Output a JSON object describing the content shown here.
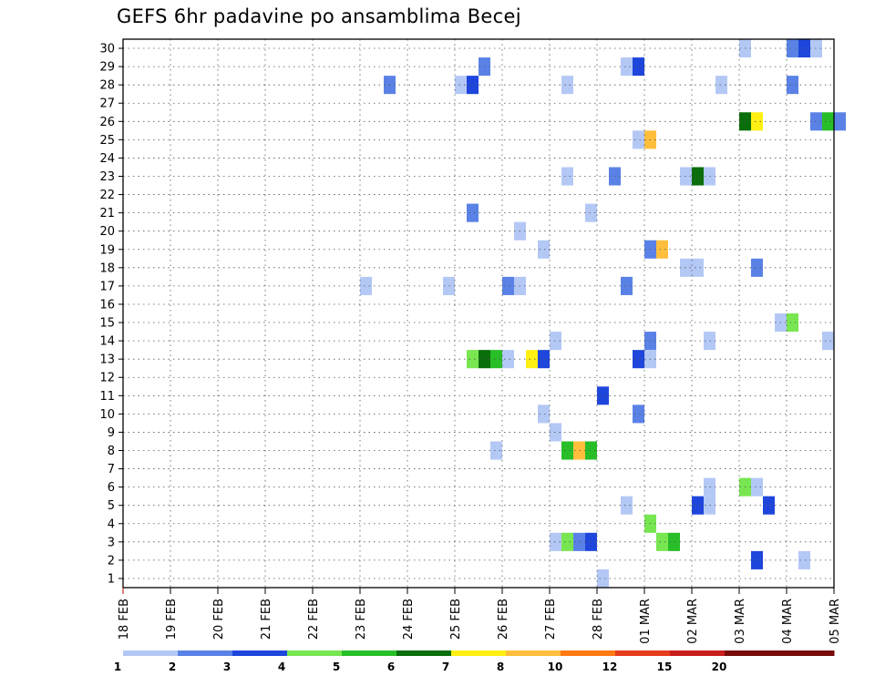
{
  "title": "GEFS 6hr padavine po ansamblima Becej",
  "chart_data": {
    "type": "heatmap",
    "title": "GEFS 6hr padavine po ansamblima Becej",
    "xlabel": "",
    "ylabel": "",
    "x_tick_labels": [
      "18 FEB",
      "19 FEB",
      "20 FEB",
      "21 FEB",
      "22 FEB",
      "23 FEB",
      "24 FEB",
      "25 FEB",
      "26 FEB",
      "27 FEB",
      "28 FEB",
      "01 MAR",
      "02 MAR",
      "03 MAR",
      "04 MAR",
      "05 MAR"
    ],
    "y_tick_labels": [
      "1",
      "2",
      "3",
      "4",
      "5",
      "6",
      "7",
      "8",
      "9",
      "10",
      "11",
      "12",
      "13",
      "14",
      "15",
      "16",
      "17",
      "18",
      "19",
      "20",
      "21",
      "22",
      "23",
      "24",
      "25",
      "26",
      "27",
      "28",
      "29",
      "30"
    ],
    "ylim": [
      0.5,
      30.5
    ],
    "xlim_days": [
      0,
      15
    ],
    "steps_per_day": 4,
    "grid": true,
    "colorbar": {
      "labels": [
        "1",
        "2",
        "3",
        "4",
        "5",
        "6",
        "7",
        "8",
        "10",
        "12",
        "15",
        "20"
      ],
      "colors": [
        "#b4c8f5",
        "#5a82e6",
        "#1e46dc",
        "#78e650",
        "#28be28",
        "#0a6e0a",
        "#fff014",
        "#ffbe3c",
        "#ff7814",
        "#e63c1e",
        "#c81e1e",
        "#780a0a"
      ]
    },
    "cells": [
      {
        "member": 30,
        "step": 52,
        "level": 1
      },
      {
        "member": 30,
        "step": 56,
        "level": 2
      },
      {
        "member": 30,
        "step": 57,
        "level": 3
      },
      {
        "member": 30,
        "step": 58,
        "level": 1
      },
      {
        "member": 29,
        "step": 30,
        "level": 2
      },
      {
        "member": 29,
        "step": 42,
        "level": 1
      },
      {
        "member": 29,
        "step": 43,
        "level": 3
      },
      {
        "member": 28,
        "step": 22,
        "level": 2
      },
      {
        "member": 28,
        "step": 28,
        "level": 1
      },
      {
        "member": 28,
        "step": 29,
        "level": 3
      },
      {
        "member": 28,
        "step": 37,
        "level": 1
      },
      {
        "member": 28,
        "step": 50,
        "level": 1
      },
      {
        "member": 28,
        "step": 56,
        "level": 2
      },
      {
        "member": 26,
        "step": 52,
        "level": 6
      },
      {
        "member": 26,
        "step": 53,
        "level": 7
      },
      {
        "member": 26,
        "step": 58,
        "level": 2
      },
      {
        "member": 26,
        "step": 59,
        "level": 5
      },
      {
        "member": 26,
        "step": 60,
        "level": 2
      },
      {
        "member": 25,
        "step": 43,
        "level": 1
      },
      {
        "member": 25,
        "step": 44,
        "level": 8
      },
      {
        "member": 23,
        "step": 37,
        "level": 1
      },
      {
        "member": 23,
        "step": 41,
        "level": 2
      },
      {
        "member": 23,
        "step": 47,
        "level": 1
      },
      {
        "member": 23,
        "step": 48,
        "level": 6
      },
      {
        "member": 23,
        "step": 49,
        "level": 1
      },
      {
        "member": 21,
        "step": 29,
        "level": 2
      },
      {
        "member": 21,
        "step": 39,
        "level": 1
      },
      {
        "member": 20,
        "step": 33,
        "level": 1
      },
      {
        "member": 19,
        "step": 35,
        "level": 1
      },
      {
        "member": 19,
        "step": 44,
        "level": 2
      },
      {
        "member": 19,
        "step": 45,
        "level": 8
      },
      {
        "member": 18,
        "step": 47,
        "level": 1
      },
      {
        "member": 18,
        "step": 48,
        "level": 1
      },
      {
        "member": 18,
        "step": 53,
        "level": 2
      },
      {
        "member": 17,
        "step": 20,
        "level": 1
      },
      {
        "member": 17,
        "step": 27,
        "level": 1
      },
      {
        "member": 17,
        "step": 32,
        "level": 2
      },
      {
        "member": 17,
        "step": 33,
        "level": 1
      },
      {
        "member": 17,
        "step": 42,
        "level": 2
      },
      {
        "member": 15,
        "step": 55,
        "level": 1
      },
      {
        "member": 15,
        "step": 56,
        "level": 4
      },
      {
        "member": 14,
        "step": 36,
        "level": 1
      },
      {
        "member": 14,
        "step": 44,
        "level": 2
      },
      {
        "member": 14,
        "step": 49,
        "level": 1
      },
      {
        "member": 14,
        "step": 59,
        "level": 1
      },
      {
        "member": 13,
        "step": 29,
        "level": 4
      },
      {
        "member": 13,
        "step": 30,
        "level": 6
      },
      {
        "member": 13,
        "step": 31,
        "level": 5
      },
      {
        "member": 13,
        "step": 32,
        "level": 1
      },
      {
        "member": 13,
        "step": 34,
        "level": 7
      },
      {
        "member": 13,
        "step": 35,
        "level": 3
      },
      {
        "member": 13,
        "step": 43,
        "level": 3
      },
      {
        "member": 13,
        "step": 44,
        "level": 1
      },
      {
        "member": 11,
        "step": 40,
        "level": 3
      },
      {
        "member": 10,
        "step": 35,
        "level": 1
      },
      {
        "member": 10,
        "step": 43,
        "level": 2
      },
      {
        "member": 9,
        "step": 36,
        "level": 1
      },
      {
        "member": 8,
        "step": 31,
        "level": 1
      },
      {
        "member": 8,
        "step": 37,
        "level": 5
      },
      {
        "member": 8,
        "step": 38,
        "level": 8
      },
      {
        "member": 8,
        "step": 39,
        "level": 5
      },
      {
        "member": 6,
        "step": 49,
        "level": 1
      },
      {
        "member": 6,
        "step": 52,
        "level": 4
      },
      {
        "member": 6,
        "step": 53,
        "level": 1
      },
      {
        "member": 5,
        "step": 42,
        "level": 1
      },
      {
        "member": 5,
        "step": 48,
        "level": 3
      },
      {
        "member": 5,
        "step": 49,
        "level": 1
      },
      {
        "member": 5,
        "step": 54,
        "level": 3
      },
      {
        "member": 4,
        "step": 44,
        "level": 4
      },
      {
        "member": 3,
        "step": 36,
        "level": 1
      },
      {
        "member": 3,
        "step": 37,
        "level": 4
      },
      {
        "member": 3,
        "step": 38,
        "level": 2
      },
      {
        "member": 3,
        "step": 39,
        "level": 3
      },
      {
        "member": 3,
        "step": 45,
        "level": 4
      },
      {
        "member": 3,
        "step": 46,
        "level": 5
      },
      {
        "member": 2,
        "step": 53,
        "level": 3
      },
      {
        "member": 2,
        "step": 57,
        "level": 1
      },
      {
        "member": 1,
        "step": 40,
        "level": 1
      }
    ]
  }
}
